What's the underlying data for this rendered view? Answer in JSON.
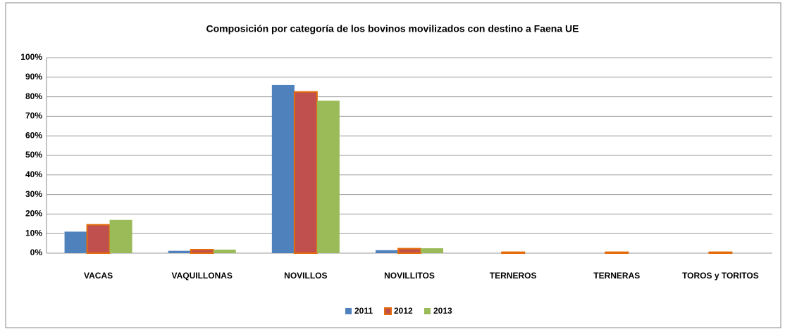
{
  "chart_data": {
    "type": "bar",
    "title": "Composición por categoría de los bovinos  movilizados con destino a  Faena UE",
    "categories": [
      "VACAS",
      "VAQUILLONAS",
      "NOVILLOS",
      "NOVILLITOS",
      "TERNEROS",
      "TERNERAS",
      "TOROS y TORITOS"
    ],
    "series": [
      {
        "name": "2011",
        "color": "#4f81bd",
        "values": [
          11,
          1.2,
          86,
          1.5,
          0,
          0,
          0
        ]
      },
      {
        "name": "2012",
        "color": "#c0504d",
        "edge": "#e46c0a",
        "values": [
          14.5,
          1.8,
          82.5,
          2.3,
          0.5,
          0.5,
          0.5
        ]
      },
      {
        "name": "2013",
        "color": "#9bbb59",
        "values": [
          17,
          1.8,
          78,
          2.5,
          0,
          0,
          0
        ]
      }
    ],
    "ylim": [
      0,
      100
    ],
    "yticks": [
      {
        "value": 0,
        "label": "0%"
      },
      {
        "value": 10,
        "label": "10%"
      },
      {
        "value": 20,
        "label": "20%"
      },
      {
        "value": 30,
        "label": "30%"
      },
      {
        "value": 40,
        "label": "40%"
      },
      {
        "value": 50,
        "label": "50%"
      },
      {
        "value": 60,
        "label": "60%"
      },
      {
        "value": 70,
        "label": "70%"
      },
      {
        "value": 80,
        "label": "80%"
      },
      {
        "value": 90,
        "label": "90%"
      },
      {
        "value": 100,
        "label": "100%"
      }
    ],
    "grid": true
  }
}
